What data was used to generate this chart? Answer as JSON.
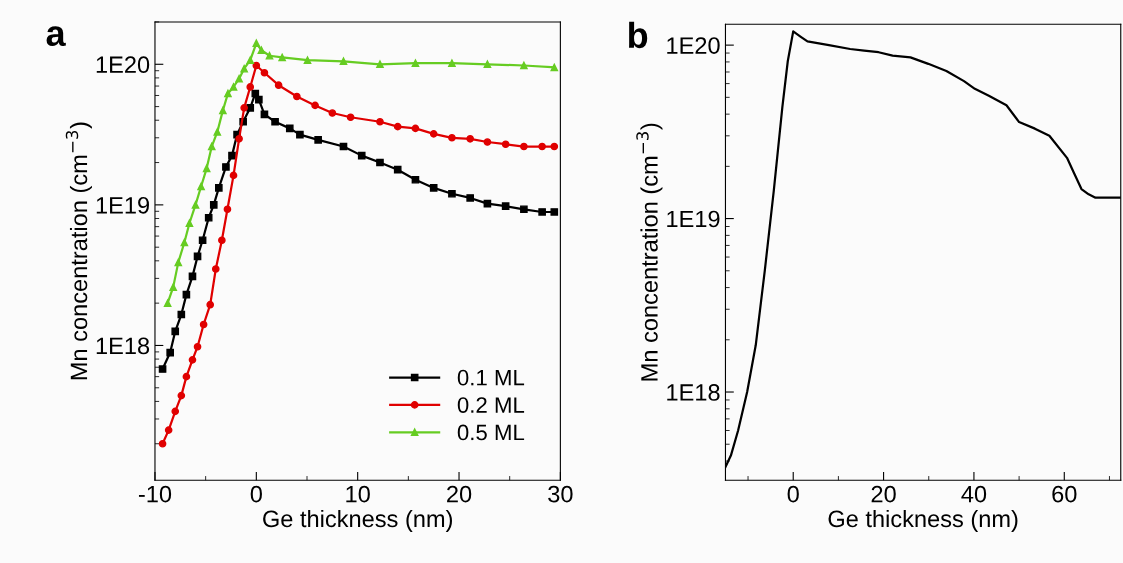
{
  "chart_data": [
    {
      "type": "line",
      "title": "a",
      "xlabel": "Ge thickness (nm)",
      "ylabel": "Mn concentration (cm$^{−3}$)",
      "log": "y",
      "xlim": [
        -10,
        30
      ],
      "xticks": [
        -10,
        0,
        10,
        20,
        30
      ],
      "ylim": [
        1.1e+17,
        2e+20
      ],
      "yticks": [
        {
          "value": 1e+18,
          "label": "1E18"
        },
        {
          "value": 1e+19,
          "label": "1E19"
        },
        {
          "value": 1e+20,
          "label": "1E20"
        }
      ],
      "legend": "bottom right",
      "grid": false,
      "series": [
        {
          "name": "0.1 ML",
          "color": "#000000",
          "marker": "square",
          "x": [
            -9.25,
            -8.5,
            -8.0,
            -7.4,
            -6.9,
            -6.3,
            -5.8,
            -5.3,
            -4.7,
            -4.2,
            -3.7,
            -3.0,
            -2.4,
            -1.9,
            -1.3,
            -0.6,
            -0.1,
            0.25,
            0.8,
            1.85,
            3.3,
            4.3,
            6.1,
            8.6,
            10.4,
            12.2,
            13.95,
            15.7,
            17.5,
            19.3,
            21.1,
            22.8,
            24.6,
            26.4,
            28.2,
            29.4
          ],
          "values": [
            6.8e+17,
            8.9e+17,
            1.26e+18,
            1.66e+18,
            2.3e+18,
            3.1e+18,
            4.3e+18,
            5.6e+18,
            8.1e+18,
            1e+19,
            1.32e+19,
            1.86e+19,
            2.24e+19,
            3.16e+19,
            3.9e+19,
            4.9e+19,
            6.2e+19,
            5.6e+19,
            4.4e+19,
            3.9e+19,
            3.5e+19,
            3.16e+19,
            2.9e+19,
            2.6e+19,
            2.24e+19,
            2e+19,
            1.78e+19,
            1.51e+19,
            1.32e+19,
            1.2e+19,
            1.12e+19,
            1.02e+19,
            9.8e+18,
            9.3e+18,
            8.9e+18,
            8.9e+18
          ]
        },
        {
          "name": "0.2 ML",
          "color": "#e00000",
          "marker": "circle",
          "x": [
            -9.25,
            -8.65,
            -8.0,
            -7.4,
            -6.9,
            -6.3,
            -5.8,
            -5.2,
            -4.55,
            -4.0,
            -3.4,
            -2.85,
            -2.25,
            -1.7,
            -1.2,
            -0.6,
            0,
            0.8,
            2.2,
            4.0,
            5.8,
            7.5,
            9.3,
            12.2,
            13.95,
            15.7,
            17.5,
            19.3,
            21.1,
            22.8,
            24.6,
            26.4,
            28.2,
            29.4
          ],
          "values": [
            2e+17,
            2.5e+17,
            3.4e+17,
            4.4e+17,
            6e+17,
            7.9e+17,
            9.8e+17,
            1.41e+18,
            1.95e+18,
            3.5e+18,
            5.6e+18,
            9.3e+18,
            1.62e+19,
            2.95e+19,
            4.9e+19,
            6.9e+19,
            9.8e+19,
            8.7e+19,
            7.1e+19,
            5.9e+19,
            5.1e+19,
            4.5e+19,
            4.2e+19,
            3.9e+19,
            3.6e+19,
            3.5e+19,
            3.2e+19,
            3e+19,
            2.95e+19,
            2.8e+19,
            2.7e+19,
            2.6e+19,
            2.6e+19,
            2.6e+19
          ]
        },
        {
          "name": "0.5 ML",
          "color": "#66cc22",
          "marker": "triangle",
          "x": [
            -8.75,
            -8.2,
            -7.7,
            -7.1,
            -6.6,
            -6.0,
            -5.45,
            -4.9,
            -4.4,
            -3.85,
            -3.3,
            -2.8,
            -2.25,
            -1.7,
            -1.2,
            -0.6,
            0,
            0.5,
            1.3,
            2.55,
            5.05,
            8.6,
            12.2,
            15.7,
            19.3,
            22.8,
            26.4,
            29.4
          ],
          "values": [
            2e+18,
            2.6e+18,
            3.9e+18,
            5.4e+18,
            7.4e+18,
            1e+19,
            1.35e+19,
            1.82e+19,
            2.6e+19,
            3.3e+19,
            4.7e+19,
            6.2e+19,
            6.9e+19,
            7.9e+19,
            9.3e+19,
            1.07e+20,
            1.41e+20,
            1.26e+20,
            1.15e+20,
            1.12e+20,
            1.07e+20,
            1.05e+20,
            1e+20,
            1.02e+20,
            1.02e+20,
            1e+20,
            9.8e+19,
            9.5e+19
          ]
        }
      ]
    },
    {
      "type": "line",
      "title": "b",
      "xlabel": "Ge thickness (nm)",
      "ylabel": "Mn concentration (cm$^{−3}$)",
      "log": "y",
      "xlim": [
        -15,
        72.5
      ],
      "xticks": [
        0,
        20,
        40,
        60
      ],
      "ylim": [
        3.1e+17,
        1.32e+20
      ],
      "yticks": [
        {
          "value": 1e+18,
          "label": "1E18"
        },
        {
          "value": 1e+19,
          "label": "1E19"
        },
        {
          "value": 1e+20,
          "label": "1E20"
        }
      ],
      "grid": false,
      "series": [
        {
          "color": "#000000",
          "x": [
            -15,
            -13.8,
            -12.2,
            -10.2,
            -8.3,
            -6.3,
            -4.3,
            -2.4,
            -1.2,
            0,
            1.6,
            3.15,
            7.9,
            12.6,
            15.7,
            18.9,
            22.0,
            25.95,
            29.9,
            33.9,
            37.8,
            40.2,
            43.3,
            47.2,
            50.0,
            53.5,
            56.7,
            60.6,
            62.2,
            63.8,
            65.4,
            66.9,
            69.3,
            72.4
          ],
          "values": [
            3.7e+17,
            4.3e+17,
            6e+17,
            1e+18,
            1.86e+18,
            5e+18,
            1.45e+19,
            4.4e+19,
            8.1e+19,
            1.2e+20,
            1.12e+20,
            1.05e+20,
            1e+20,
            9.5e+19,
            9.3e+19,
            9.1e+19,
            8.7e+19,
            8.5e+19,
            7.8e+19,
            7.1e+19,
            6.2e+19,
            5.6e+19,
            5.1e+19,
            4.5e+19,
            3.6e+19,
            3.3e+19,
            3e+19,
            2.24e+19,
            1.82e+19,
            1.48e+19,
            1.38e+19,
            1.32e+19,
            1.32e+19,
            1.32e+19
          ]
        }
      ]
    }
  ]
}
